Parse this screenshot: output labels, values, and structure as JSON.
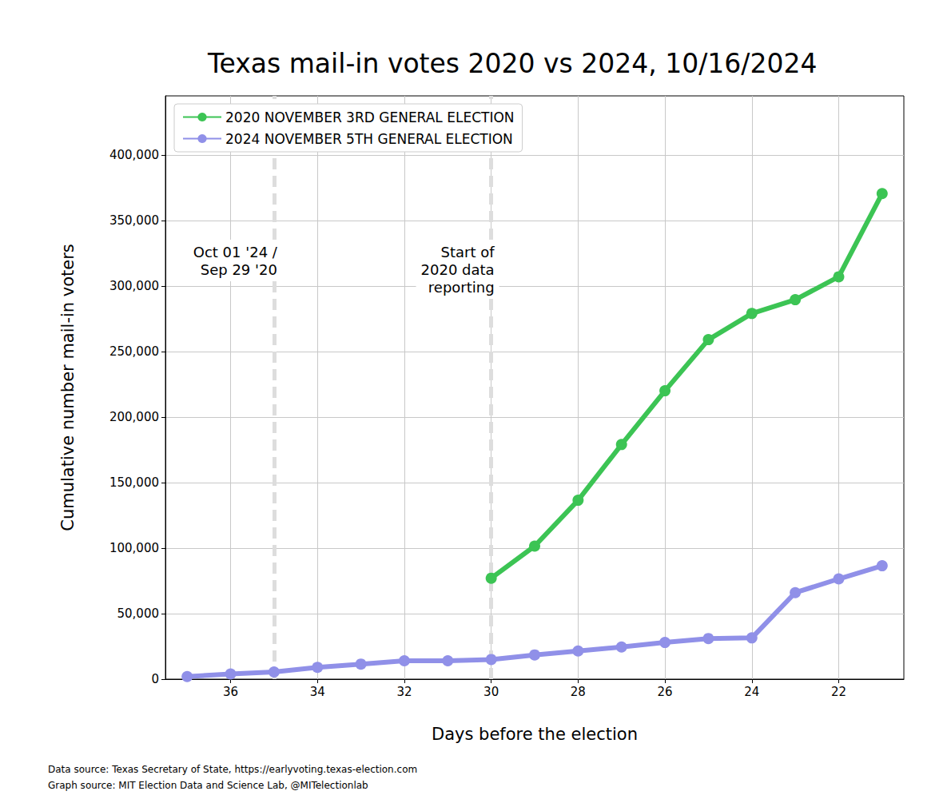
{
  "chart_data": {
    "type": "line",
    "title": "Texas mail-in votes 2020 vs 2024, 10/16/2024",
    "x_label": "Days before the election",
    "y_label": "Cumulative number mail-in voters",
    "x": [
      37,
      36,
      35,
      34,
      33,
      32,
      31,
      30,
      29,
      28,
      27,
      26,
      25,
      24,
      23,
      22,
      21
    ],
    "series": [
      {
        "name": "2020 NOVEMBER 3RD GENERAL ELECTION",
        "color": "#3cc454",
        "marker": "circle",
        "line_style": "solid",
        "values": [
          null,
          null,
          null,
          null,
          null,
          null,
          null,
          77000,
          101500,
          136500,
          179000,
          220000,
          259000,
          279000,
          289500,
          307000,
          370500
        ]
      },
      {
        "name": "2024 NOVEMBER 5TH GENERAL ELECTION",
        "color": "#9090e8",
        "marker": "circle",
        "line_style": "solid",
        "values": [
          2000,
          4000,
          5500,
          9000,
          11500,
          14000,
          14000,
          15000,
          18500,
          21500,
          24500,
          28000,
          31000,
          31500,
          66000,
          76500,
          86500
        ]
      }
    ],
    "xlim": [
      37.5,
      20.5
    ],
    "xticks": [
      36,
      34,
      32,
      30,
      28,
      26,
      24,
      22
    ],
    "ylim": [
      0,
      445000
    ],
    "yticks": [
      0,
      {
        "value": 50000,
        "label": "50,000"
      },
      {
        "value": 100000,
        "label": "100,000"
      },
      {
        "value": 150000,
        "label": "150,000"
      },
      {
        "value": 200000,
        "label": "200,000"
      },
      {
        "value": 250000,
        "label": "250,000"
      },
      {
        "value": 300000,
        "label": "300,000"
      },
      {
        "value": 350000,
        "label": "350,000"
      },
      {
        "value": 400000,
        "label": "400,000"
      }
    ],
    "grid": true,
    "legend": "upper left",
    "annotations": [
      {
        "x": 35,
        "text": "Oct 01 '24 /\nSep 29 '20"
      },
      {
        "x": 30,
        "text": "Start of\n2020 data\nreporting"
      }
    ],
    "footnotes": [
      "Data source: Texas Secretary of State, https://earlyvoting.texas-election.com",
      "Graph source: MIT Election Data and Science Lab, @MITelectionlab"
    ]
  }
}
